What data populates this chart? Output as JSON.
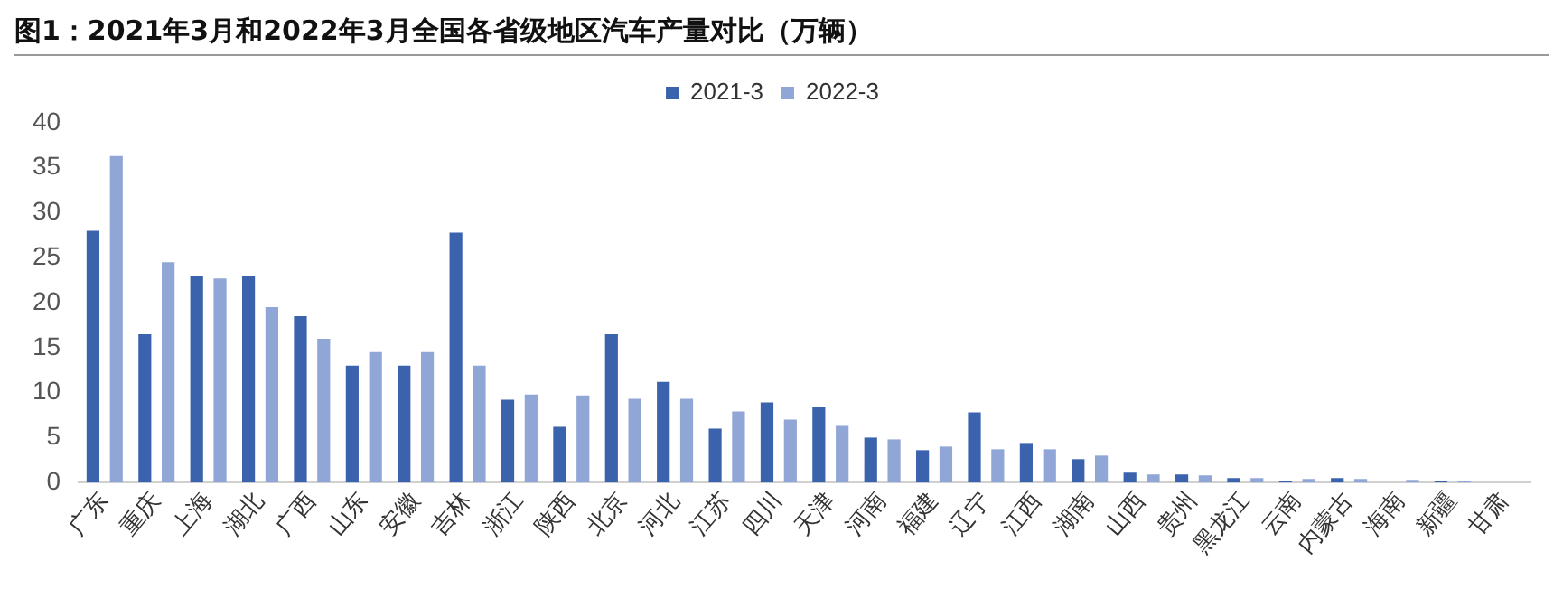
{
  "chart_data": {
    "type": "bar",
    "title": "图1：2021年3月和2022年3月全国各省级地区汽车产量对比（万辆）",
    "categories": [
      "广东",
      "重庆",
      "上海",
      "湖北",
      "广西",
      "山东",
      "安徽",
      "吉林",
      "浙江",
      "陕西",
      "北京",
      "河北",
      "江苏",
      "四川",
      "天津",
      "河南",
      "福建",
      "辽宁",
      "江西",
      "湖南",
      "山西",
      "贵州",
      "黑龙江",
      "云南",
      "内蒙古",
      "海南",
      "新疆",
      "甘肃"
    ],
    "series": [
      {
        "name": "2021-3",
        "color": "#3a62ad",
        "values": [
          28,
          16.5,
          23,
          23,
          18.5,
          13,
          13,
          27.8,
          9.2,
          6.2,
          16.5,
          11.2,
          6,
          8.9,
          8.4,
          5,
          3.6,
          7.8,
          4.4,
          2.6,
          1.1,
          0.9,
          0.5,
          0.2,
          0.5,
          0,
          0.2,
          0
        ]
      },
      {
        "name": "2022-3",
        "color": "#8fa6d6",
        "values": [
          36.3,
          24.5,
          22.7,
          19.5,
          16,
          14.5,
          14.5,
          13,
          9.8,
          9.7,
          9.3,
          9.3,
          7.9,
          7,
          6.3,
          4.8,
          4,
          3.7,
          3.7,
          3,
          0.9,
          0.8,
          0.5,
          0.4,
          0.4,
          0.3,
          0.2,
          0
        ]
      }
    ],
    "ylim": [
      0,
      40
    ],
    "yticks": [
      0,
      5,
      10,
      15,
      20,
      25,
      30,
      35,
      40
    ],
    "grid": false,
    "legend": "top"
  }
}
